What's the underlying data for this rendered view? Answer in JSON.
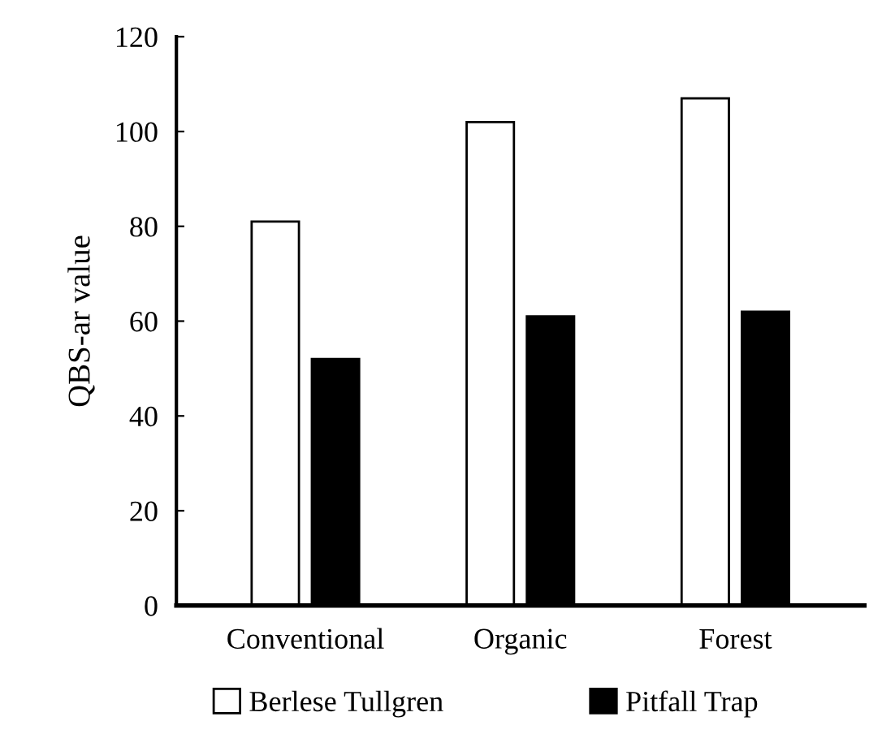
{
  "chart_data": {
    "type": "bar",
    "ylabel": "QBS-ar value",
    "categories": [
      "Conventional",
      "Organic",
      "Forest"
    ],
    "series": [
      {
        "name": "Berlese Tullgren",
        "color": "#ffffff",
        "values": [
          81,
          102,
          107
        ]
      },
      {
        "name": "Pitfall Trap",
        "color": "#000000",
        "values": [
          52,
          61,
          62
        ]
      }
    ],
    "ylim": [
      0,
      120
    ],
    "yticks": [
      0,
      20,
      40,
      60,
      80,
      100,
      120
    ],
    "grid": false,
    "legend": "bottom"
  }
}
